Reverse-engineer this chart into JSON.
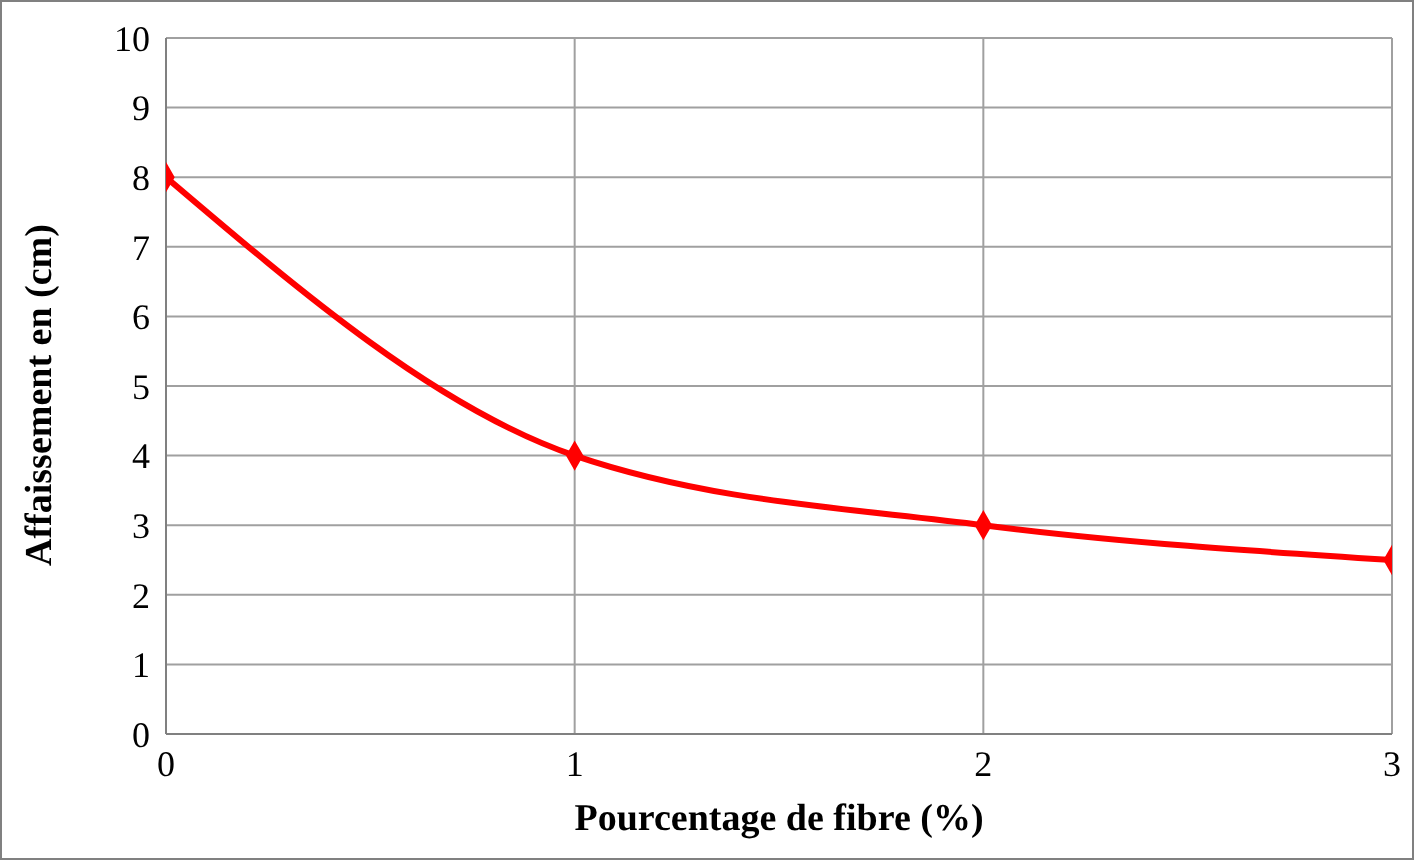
{
  "chart_data": {
    "type": "line",
    "xlabel": "Pourcentage de fibre (%)",
    "ylabel": "Affaissement  en  (cm)",
    "x": [
      0,
      1,
      2,
      3
    ],
    "series": [
      {
        "color": "#ff0000",
        "values": [
          8,
          4,
          3,
          2.5
        ]
      }
    ],
    "xlim": [
      0,
      3
    ],
    "xticks": [
      0,
      1,
      2,
      3
    ],
    "ylim": [
      0,
      10
    ],
    "yticks": [
      0,
      1,
      2,
      3,
      4,
      5,
      6,
      7,
      8,
      9,
      10
    ],
    "grid": true,
    "marker": "diamond",
    "line_style": "solid"
  }
}
